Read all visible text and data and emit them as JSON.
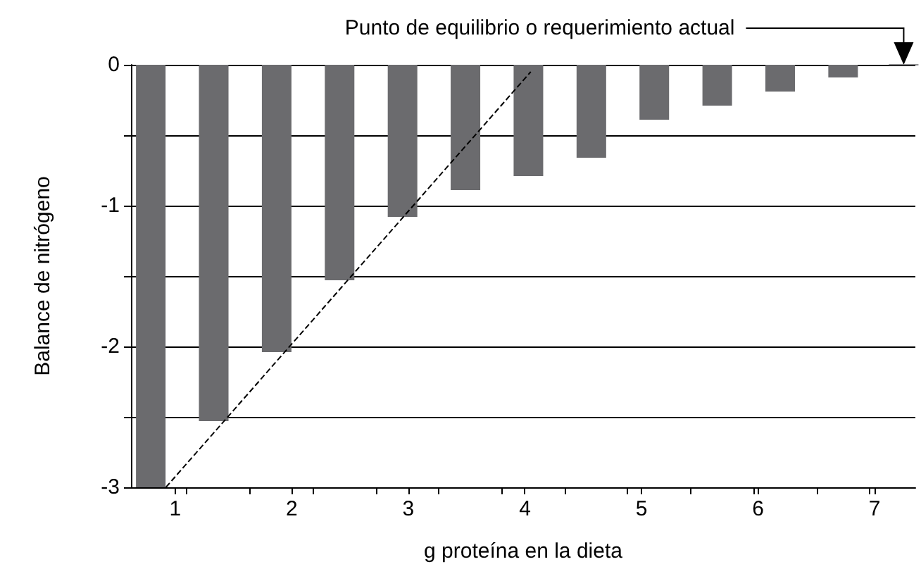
{
  "chart_data": {
    "type": "bar",
    "xlabel": "g proteína en la dieta",
    "ylabel": "Balance de nitrógeno",
    "annotations": [
      "Punto de equilibrio o requerimiento actual"
    ],
    "series": [
      {
        "color": "#6b6b6e",
        "x": [
          0.79,
          1.33,
          1.87,
          2.41,
          2.95,
          3.49,
          4.03,
          4.57,
          5.11,
          5.65,
          6.19,
          6.73,
          7.25
        ],
        "values": [
          -3.0,
          -2.53,
          -2.04,
          -1.53,
          -1.08,
          -0.89,
          -0.79,
          -0.66,
          -0.39,
          -0.29,
          -0.19,
          -0.09,
          0
        ]
      },
      {
        "type": "line",
        "color": "#000000",
        "line_style": "dashed",
        "marker": "none",
        "x": [
          0.92,
          4.05
        ],
        "values": [
          -3.0,
          -0.05
        ]
      }
    ],
    "xlim": [
      0.62,
      7.35
    ],
    "xticks": [
      1,
      2,
      3,
      4,
      5,
      6,
      7,
      {
        "value": 1.1,
        "label": null
      },
      {
        "value": 1.64,
        "label": null
      },
      {
        "value": 2.18,
        "label": null
      },
      {
        "value": 2.72,
        "label": null
      },
      {
        "value": 3.26,
        "label": null
      },
      {
        "value": 3.8,
        "label": null
      },
      {
        "value": 4.34,
        "label": null
      },
      {
        "value": 4.88,
        "label": null
      },
      {
        "value": 5.42,
        "label": null
      },
      {
        "value": 5.96,
        "label": null
      },
      {
        "value": 6.51,
        "label": null
      },
      {
        "value": 6.95,
        "label": null
      }
    ],
    "ylim": [
      -3,
      0
    ],
    "yticks": [
      -3,
      {
        "value": -2.5,
        "label": null
      },
      -2,
      {
        "value": -1.5,
        "label": null
      },
      -1,
      {
        "value": -0.5,
        "label": null
      },
      0
    ],
    "grid": "y"
  }
}
